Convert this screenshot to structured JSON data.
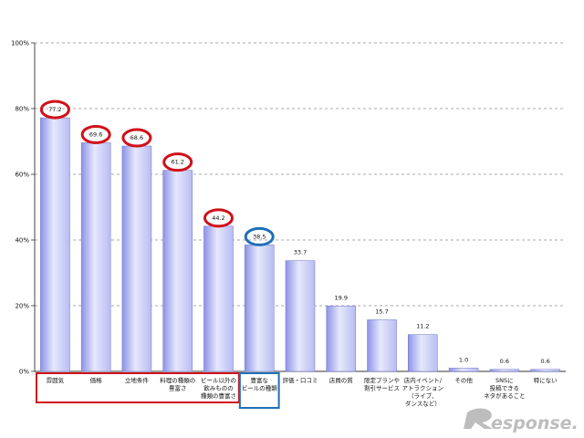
{
  "chart_data": {
    "type": "bar",
    "categories": [
      [
        "雰囲気"
      ],
      [
        "価格"
      ],
      [
        "立地条件"
      ],
      [
        "料理の種類の",
        "豊富さ"
      ],
      [
        "ビール以外の",
        "飲みものの",
        "種類の豊富さ"
      ],
      [
        "豊富な",
        "ビールの種類"
      ],
      [
        "評価・口コミ"
      ],
      [
        "店員の質"
      ],
      [
        "限定プランや",
        "割引サービス"
      ],
      [
        "店内イベント/",
        "アトラクション",
        "（ライブ、",
        "ダンスなど）"
      ],
      [
        "その他"
      ],
      [
        "SNSに",
        "投稿できる",
        "ネタがあること"
      ],
      [
        "特にない"
      ]
    ],
    "values": [
      77.2,
      69.6,
      68.6,
      61.2,
      44.2,
      38.5,
      33.7,
      19.9,
      15.7,
      11.2,
      1.0,
      0.6,
      0.6
    ],
    "value_labels": [
      "77.2",
      "69.6",
      "68.6",
      "61.2",
      "44.2",
      "38.5",
      "33.7",
      "19.9",
      "15.7",
      "11.2",
      "1.0",
      "0.6",
      "0.6"
    ],
    "ylim": [
      0,
      100
    ],
    "yticks": [
      "0%",
      "20%",
      "40%",
      "60%",
      "80%",
      "100%"
    ],
    "grid": true,
    "bar_color": "#b8bdf2",
    "highlight_red_indices": [
      0,
      1,
      2,
      3,
      4
    ],
    "highlight_blue_indices": [
      5
    ],
    "red_color": "#d0101a",
    "blue_color": "#1f6fb5"
  },
  "logo": {
    "text": "esponse."
  }
}
